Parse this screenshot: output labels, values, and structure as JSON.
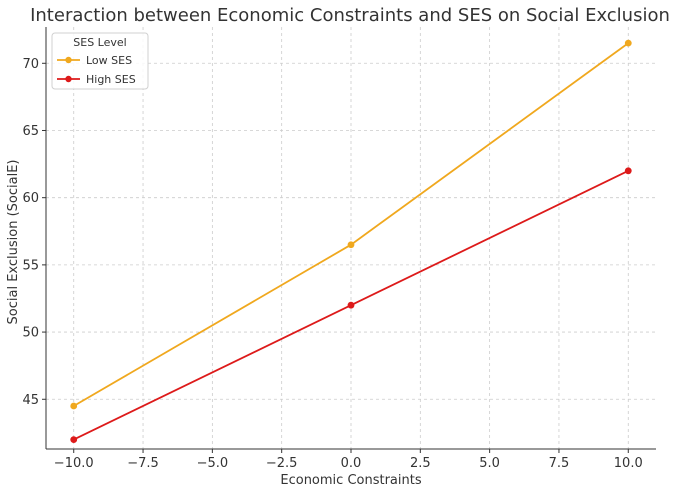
{
  "chart_data": {
    "type": "line",
    "title": "Interaction between Economic Constraints and SES on Social Exclusion",
    "xlabel": "Economic Constraints",
    "ylabel": "Social Exclusion (SocialE)",
    "x": [
      -10,
      0,
      10
    ],
    "xlim": [
      -11,
      11
    ],
    "ylim": [
      41.3,
      72.7
    ],
    "xticks": [
      -10,
      -7.5,
      -5,
      -2.5,
      0,
      2.5,
      5,
      7.5,
      10
    ],
    "xtick_labels": [
      "−10.0",
      "−7.5",
      "−5.0",
      "−2.5",
      "0.0",
      "2.5",
      "5.0",
      "7.5",
      "10.0"
    ],
    "yticks": [
      45,
      50,
      55,
      60,
      65,
      70
    ],
    "ytick_labels": [
      "45",
      "50",
      "55",
      "60",
      "65",
      "70"
    ],
    "grid": true,
    "legend": {
      "title": "SES Level",
      "placement": "top-left"
    },
    "series": [
      {
        "name": "Low SES",
        "color": "#f0a81e",
        "values": [
          44.5,
          56.5,
          71.5
        ]
      },
      {
        "name": "High SES",
        "color": "#dd1a1a",
        "values": [
          42.0,
          52.0,
          62.0
        ]
      }
    ]
  }
}
